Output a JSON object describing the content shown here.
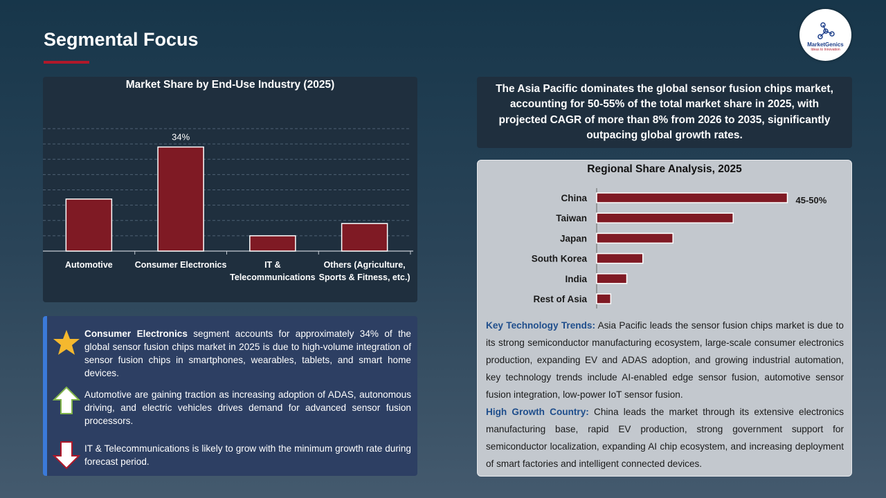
{
  "page": {
    "title": "Segmental Focus",
    "accent_color": "#b0182a"
  },
  "logo": {
    "name": "MarketGenics",
    "tagline": "Ideas to Innovation"
  },
  "chart_data": [
    {
      "type": "bar",
      "title": "Market Share by End-Use Industry (2025)",
      "categories": [
        "Automotive",
        "Consumer Electronics",
        "IT & Telecommunications",
        "Others (Agriculture, Sports & Fitness, etc.)"
      ],
      "category_lines": [
        [
          "Automotive"
        ],
        [
          "Consumer Electronics"
        ],
        [
          "IT &",
          "Telecommunications"
        ],
        [
          "Others (Agriculture,",
          "Sports & Fitness, etc.)"
        ]
      ],
      "values": [
        17,
        34,
        5,
        9
      ],
      "data_labels": [
        "",
        "34%",
        "",
        ""
      ],
      "ylim": [
        0,
        40
      ],
      "grid": true,
      "bar_color": "#7f1a24"
    },
    {
      "type": "bar",
      "orientation": "horizontal",
      "title": "Regional Share Analysis, 2025",
      "categories": [
        "China",
        "Taiwan",
        "Japan",
        "South Korea",
        "India",
        "Rest of Asia"
      ],
      "values": [
        47.5,
        34,
        19,
        11.5,
        7.5,
        3.5
      ],
      "data_labels": [
        "45-50%",
        "",
        "",
        "",
        "",
        ""
      ],
      "xlim": [
        0,
        50
      ],
      "grid": false,
      "bar_color": "#7f1a24"
    }
  ],
  "insights": [
    {
      "icon": "star-icon",
      "bold": "Consumer Electronics",
      "text": " segment accounts for approximately 34% of the global sensor fusion chips market in 2025 is due to high-volume integration of sensor fusion chips in smartphones, wearables, tablets, and smart home devices."
    },
    {
      "icon": "arrow-up-icon",
      "bold": "",
      "text": "Automotive are gaining traction as increasing adoption of ADAS, autonomous driving, and electric vehicles drives demand for advanced sensor fusion processors."
    },
    {
      "icon": "arrow-down-icon",
      "bold": "",
      "text": "IT & Telecommunications is likely to grow with the minimum growth rate during forecast period."
    }
  ],
  "callout": "The Asia Pacific dominates the global sensor fusion chips market, accounting for 50-55% of the total market share in 2025, with projected CAGR of more than 8% from 2026 to 2035, significantly outpacing global growth rates.",
  "region": {
    "trends_label": "Key Technology Trends:",
    "trends_text": " Asia Pacific leads the sensor fusion chips market is due to its strong semiconductor manufacturing ecosystem, large-scale consumer electronics production, expanding EV and ADAS adoption, and growing industrial automation, key technology trends include AI-enabled edge sensor fusion, automotive sensor fusion integration, low-power IoT sensor fusion.",
    "growth_label": "High Growth Country:",
    "growth_text": " China leads the market through its extensive electronics manufacturing base, rapid EV production, strong government support for semiconductor localization, expanding AI chip ecosystem, and increasing deployment of smart factories and intelligent connected devices."
  }
}
